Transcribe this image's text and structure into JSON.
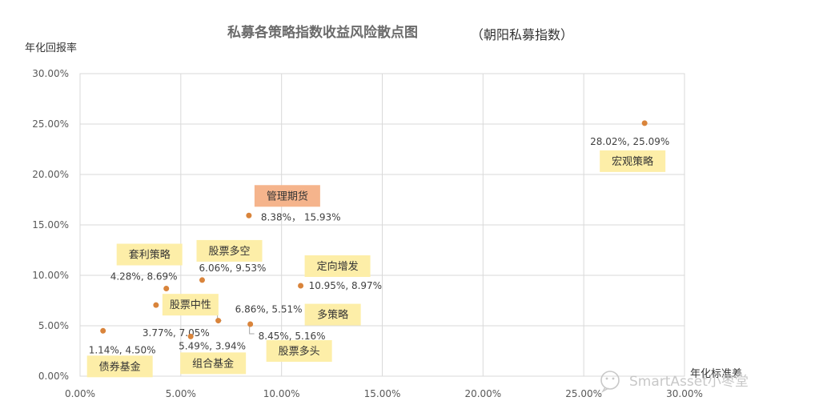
{
  "chart_data": {
    "type": "scatter",
    "title": "私募各策略指数收益风险散点图",
    "subtitle": "（朝阳私募指数）",
    "xlabel": "年化标准差",
    "ylabel": "年化回报率",
    "xlim": [
      0,
      30
    ],
    "ylim": [
      0,
      30
    ],
    "x_ticks": [
      "0.00%",
      "5.00%",
      "10.00%",
      "15.00%",
      "20.00%",
      "25.00%",
      "30.00%"
    ],
    "y_ticks": [
      "0.00%",
      "5.00%",
      "10.00%",
      "15.00%",
      "20.00%",
      "25.00%",
      "30.00%"
    ],
    "grid": true,
    "marker_color": "#d9843b",
    "points": [
      {
        "name": "宏观策略",
        "x": 28.02,
        "y": 25.09,
        "label": "28.02%, 25.09%",
        "highlight": false
      },
      {
        "name": "管理期货",
        "x": 8.38,
        "y": 15.93,
        "label": "8.38%， 15.93%",
        "highlight": true
      },
      {
        "name": "股票多空",
        "x": 6.06,
        "y": 9.53,
        "label": "6.06%, 9.53%",
        "highlight": false
      },
      {
        "name": "套利策略",
        "x": 4.28,
        "y": 8.69,
        "label": "4.28%, 8.69%",
        "highlight": false
      },
      {
        "name": "定向增发",
        "x": 10.95,
        "y": 8.97,
        "label": "10.95%, 8.97%",
        "highlight": false
      },
      {
        "name": "股票中性",
        "x": 3.77,
        "y": 7.05,
        "label": "3.77%, 7.05%",
        "highlight": false
      },
      {
        "name": "多策略",
        "x": 6.86,
        "y": 5.51,
        "label": "6.86%, 5.51%",
        "highlight": false
      },
      {
        "name": "股票多头",
        "x": 8.45,
        "y": 5.16,
        "label": "8.45%, 5.16%",
        "highlight": false
      },
      {
        "name": "债券基金",
        "x": 1.14,
        "y": 4.5,
        "label": "1.14%, 4.50%",
        "highlight": false
      },
      {
        "name": "组合基金",
        "x": 5.49,
        "y": 3.94,
        "label": "5.49%, 3.94%",
        "highlight": false
      }
    ]
  },
  "colors": {
    "tag_fill": "#fdeea8",
    "tag_highlight_fill": "#f5b48c",
    "grid": "#d9d9d9"
  },
  "watermark": {
    "text": "SmartAsset小枣堂",
    "icon": "wechat-icon"
  }
}
